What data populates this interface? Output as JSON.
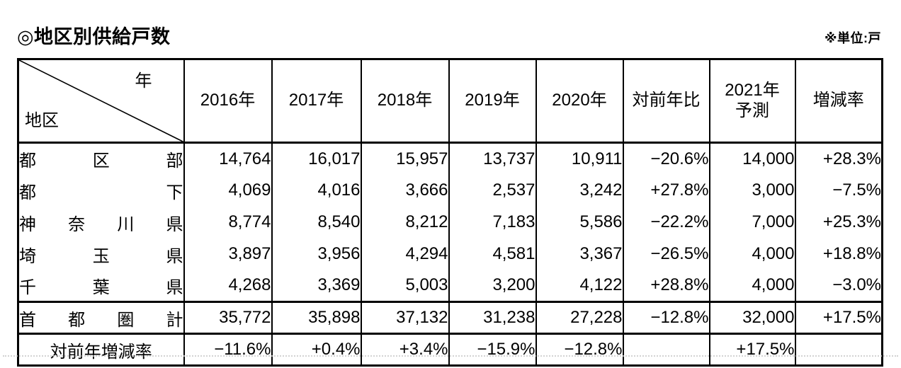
{
  "page": {
    "title": "◎地区別供給戸数",
    "unit_note": "※単位:戸"
  },
  "table": {
    "corner": {
      "year_label": "年",
      "district_label": "地区"
    },
    "columns": [
      "2016年",
      "2017年",
      "2018年",
      "2019年",
      "2020年",
      "対前年比",
      "2021年\n予測",
      "増減率"
    ],
    "rows": [
      {
        "label": "都区部",
        "values": [
          "14,764",
          "16,017",
          "15,957",
          "13,737",
          "10,911",
          "−20.6%",
          "14,000",
          "+28.3%"
        ]
      },
      {
        "label": "都下",
        "values": [
          "4,069",
          "4,016",
          "3,666",
          "2,537",
          "3,242",
          "+27.8%",
          "3,000",
          "−7.5%"
        ]
      },
      {
        "label": "神奈川県",
        "values": [
          "8,774",
          "8,540",
          "8,212",
          "7,183",
          "5,586",
          "−22.2%",
          "7,000",
          "+25.3%"
        ]
      },
      {
        "label": "埼玉県",
        "values": [
          "3,897",
          "3,956",
          "4,294",
          "4,581",
          "3,367",
          "−26.5%",
          "4,000",
          "+18.8%"
        ]
      },
      {
        "label": "千葉県",
        "values": [
          "4,268",
          "3,369",
          "5,003",
          "3,200",
          "4,122",
          "+28.8%",
          "4,000",
          "−3.0%"
        ]
      }
    ],
    "total_row": {
      "label": "首都圏計",
      "values": [
        "35,772",
        "35,898",
        "37,132",
        "31,238",
        "27,228",
        "−12.8%",
        "32,000",
        "+17.5%"
      ]
    },
    "rate_row": {
      "label": "対前年増減率",
      "values": [
        "−11.6%",
        "+0.4%",
        "+3.4%",
        "−15.9%",
        "−12.8%",
        "",
        "+17.5%",
        ""
      ]
    }
  }
}
